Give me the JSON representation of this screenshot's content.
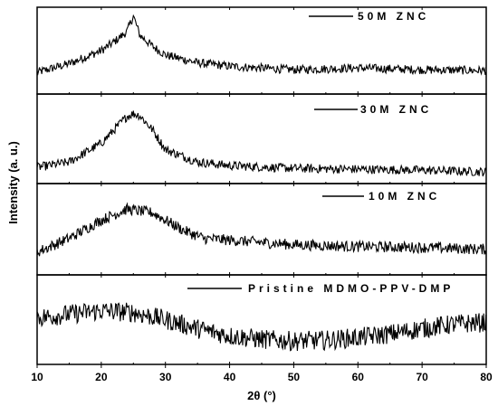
{
  "chart_data": {
    "type": "line",
    "layout": "stacked-panels",
    "xlabel": "2θ (°)",
    "ylabel": "Intensity (a. u.)",
    "xlim": [
      10,
      80
    ],
    "x_ticks": [
      10,
      20,
      30,
      40,
      50,
      60,
      70,
      80
    ],
    "y_ticks_labeled": false,
    "grid": false,
    "legend_placement": "top of each panel",
    "line_color": "#000000",
    "series": [
      {
        "name": "50M ZNC",
        "x": [
          10,
          15,
          20,
          22,
          24,
          25,
          26,
          28,
          30,
          35,
          40,
          50,
          60,
          70,
          80
        ],
        "y": [
          0.25,
          0.35,
          0.5,
          0.6,
          0.72,
          0.9,
          0.68,
          0.55,
          0.45,
          0.36,
          0.32,
          0.28,
          0.3,
          0.28,
          0.27
        ],
        "noise": 0.05
      },
      {
        "name": "30M ZNC",
        "x": [
          10,
          15,
          20,
          22,
          24,
          25,
          26,
          28,
          30,
          35,
          40,
          50,
          60,
          70,
          80
        ],
        "y": [
          0.18,
          0.24,
          0.45,
          0.6,
          0.75,
          0.78,
          0.76,
          0.6,
          0.38,
          0.24,
          0.2,
          0.17,
          0.16,
          0.15,
          0.13
        ],
        "noise": 0.05
      },
      {
        "name": "10M ZNC",
        "x": [
          10,
          15,
          20,
          24,
          28,
          30,
          33,
          36,
          40,
          50,
          60,
          70,
          80
        ],
        "y": [
          0.25,
          0.4,
          0.6,
          0.72,
          0.68,
          0.6,
          0.48,
          0.4,
          0.38,
          0.33,
          0.31,
          0.3,
          0.28
        ],
        "noise": 0.06
      },
      {
        "name": "Pristine MDMO-PPV-DMP",
        "x": [
          10,
          15,
          20,
          25,
          30,
          35,
          40,
          45,
          50,
          55,
          60,
          65,
          70,
          75,
          80
        ],
        "y": [
          0.52,
          0.56,
          0.6,
          0.58,
          0.5,
          0.4,
          0.32,
          0.28,
          0.26,
          0.27,
          0.3,
          0.34,
          0.4,
          0.45,
          0.47
        ],
        "noise": 0.11
      }
    ]
  }
}
